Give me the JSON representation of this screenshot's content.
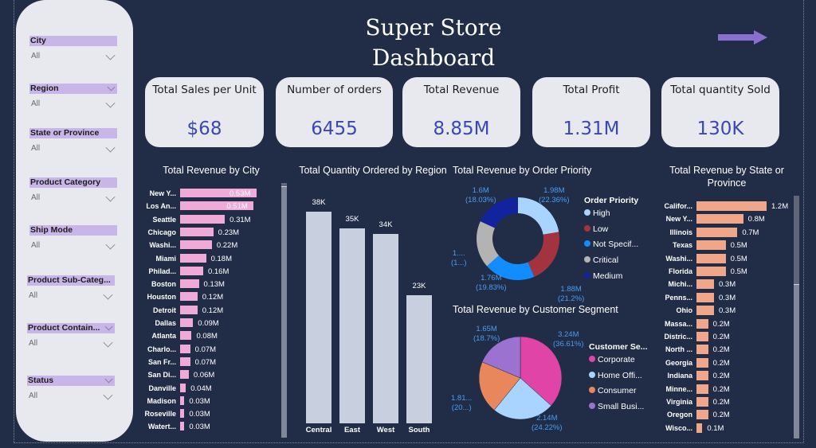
{
  "title": "Super Store Dashboard",
  "title_lines": [
    "Super Store",
    "Dashboard"
  ],
  "nav_arrow_icon": "arrow-right-icon",
  "colors": {
    "background": "#212d47",
    "panel": "#e8e9ee",
    "slicer_header": "#c9b6e8",
    "kpi_value": "#3a48b5",
    "city_bar": "#f0aad8",
    "region_bar": "#c8d0e0",
    "state_bar": "#f0a688",
    "nav_arrow": "#8a6fd1",
    "data_label": "#4a9cf0"
  },
  "slicers": [
    {
      "label": "City",
      "value": "All"
    },
    {
      "label": "Region",
      "value": "All"
    },
    {
      "label": "State or Province",
      "value": "All"
    },
    {
      "label": "Product Category",
      "value": "All"
    },
    {
      "label": "Ship Mode",
      "value": "All"
    },
    {
      "label": "Product Sub-Categ...",
      "value": "All"
    },
    {
      "label": "Product Contain...",
      "value": "All"
    },
    {
      "label": "Status",
      "value": "All"
    }
  ],
  "kpis": [
    {
      "label": "Total Sales per Unit",
      "value": "$68"
    },
    {
      "label": "Number of orders",
      "value": "6455"
    },
    {
      "label": "Total Revenue",
      "value": "8.85M"
    },
    {
      "label": "Total Profit",
      "value": "1.31M"
    },
    {
      "label": "Total quantity Sold",
      "value": "130K"
    }
  ],
  "chart_data": [
    {
      "type": "bar",
      "orientation": "horizontal",
      "title": "Total Revenue by City",
      "categories": [
        "New Y...",
        "Los An...",
        "Seattle",
        "Chicago",
        "Washi...",
        "Miami",
        "Philad...",
        "Boston",
        "Houston",
        "Detroit",
        "Dallas",
        "Atlanta",
        "Charlo...",
        "San Fr...",
        "San Di...",
        "Danville",
        "Madison",
        "Roseville",
        "Watert..."
      ],
      "values": [
        0.53,
        0.51,
        0.31,
        0.23,
        0.22,
        0.18,
        0.16,
        0.13,
        0.12,
        0.12,
        0.09,
        0.08,
        0.07,
        0.07,
        0.06,
        0.04,
        0.03,
        0.03,
        0.03
      ],
      "labels": [
        "0.53M",
        "0.51M",
        "0.31M",
        "0.23M",
        "0.22M",
        "0.18M",
        "0.16M",
        "0.13M",
        "0.12M",
        "0.12M",
        "0.09M",
        "0.08M",
        "0.07M",
        "0.07M",
        "0.06M",
        "0.04M",
        "0.03M",
        "0.03M",
        "0.03M"
      ],
      "unit": "M",
      "color": "#f0aad8"
    },
    {
      "type": "bar",
      "orientation": "vertical",
      "title": "Total Quantity Ordered by Region",
      "categories": [
        "Central",
        "East",
        "West",
        "South"
      ],
      "values": [
        38,
        35,
        34,
        23
      ],
      "labels": [
        "38K",
        "35K",
        "34K",
        "23K"
      ],
      "unit": "K",
      "color": "#c8d0e0"
    },
    {
      "type": "pie",
      "variant": "donut",
      "title": "Total Revenue by Order Priority",
      "legend_title": "Order Priority",
      "legend_position": "right",
      "slices": [
        {
          "name": "High",
          "value": 1.98,
          "label": "1.98M",
          "pct_label": "(22.36%)",
          "color": "#a8d4ff"
        },
        {
          "name": "Low",
          "value": 1.88,
          "label": "1.88M",
          "pct_label": "(21.2%)",
          "color": "#a3343f"
        },
        {
          "name": "Not Specif...",
          "value": 1.76,
          "label": "1.76M",
          "pct_label": "(19.83%)",
          "color": "#118dff"
        },
        {
          "name": "Critical",
          "value": 1.63,
          "label": "1....",
          "pct_label": "(1...)",
          "color": "#b3b3b3"
        },
        {
          "name": "Medium",
          "value": 1.6,
          "label": "1.6M",
          "pct_label": "(18.03%)",
          "color": "#12239e"
        }
      ]
    },
    {
      "type": "pie",
      "title": "Total Revenue by Customer Segment",
      "legend_title": "Customer Se...",
      "legend_position": "right",
      "slices": [
        {
          "name": "Corporate",
          "value": 3.24,
          "label": "3.24M",
          "pct_label": "(36.61%)",
          "color": "#e044a7"
        },
        {
          "name": "Home Offi...",
          "value": 2.14,
          "label": "2.14M",
          "pct_label": "(24.22%)",
          "color": "#a8d4ff"
        },
        {
          "name": "Consumer",
          "value": 1.81,
          "label": "1.81...",
          "pct_label": "(20...)",
          "color": "#e8875c"
        },
        {
          "name": "Small Busi...",
          "value": 1.65,
          "label": "1.65M",
          "pct_label": "(18.7%)",
          "color": "#9b72cf"
        }
      ]
    },
    {
      "type": "bar",
      "orientation": "horizontal",
      "title": "Total Revenue by State or Province",
      "categories": [
        "Califor...",
        "New Y...",
        "Illinois",
        "Texas",
        "Washi...",
        "Florida",
        "Michi...",
        "Penns...",
        "Ohio",
        "Massa...",
        "Distric...",
        "North ...",
        "Georgia",
        "Indiana",
        "Minne...",
        "Virginia",
        "Oregon",
        "Wisco..."
      ],
      "values": [
        1.2,
        0.8,
        0.7,
        0.5,
        0.5,
        0.5,
        0.3,
        0.3,
        0.3,
        0.2,
        0.2,
        0.2,
        0.2,
        0.2,
        0.2,
        0.2,
        0.2,
        0.1
      ],
      "labels": [
        "1.2M",
        "0.8M",
        "0.7M",
        "0.5M",
        "0.5M",
        "0.5M",
        "0.3M",
        "0.3M",
        "0.3M",
        "0.2M",
        "0.2M",
        "0.2M",
        "0.2M",
        "0.2M",
        "0.2M",
        "0.2M",
        "0.2M",
        "0.1M"
      ],
      "unit": "M",
      "color": "#f0a688"
    }
  ]
}
